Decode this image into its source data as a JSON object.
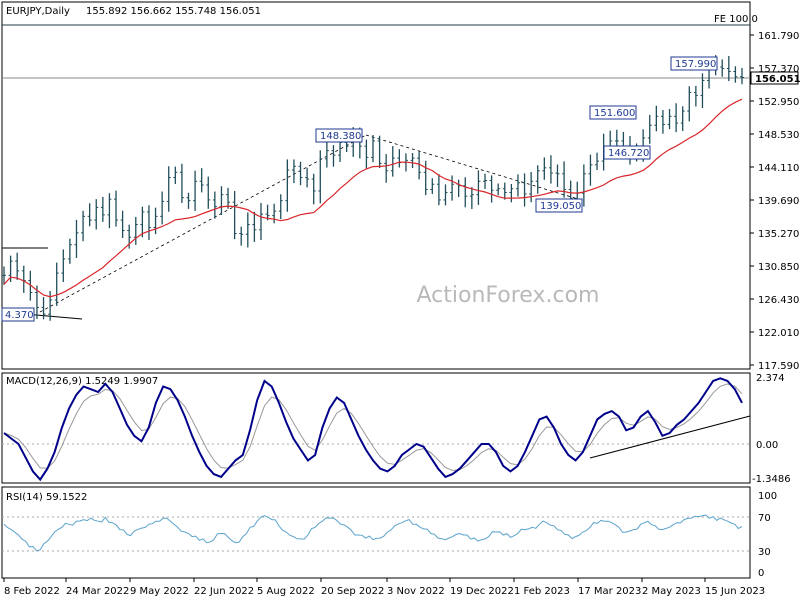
{
  "chart_data": {
    "type": "candlestick",
    "header": {
      "symbol": "EURJPY,Daily",
      "ohlc": "155.892 156.662 155.748 156.051"
    },
    "watermark": "ActionForex.com",
    "x_axis": {
      "labels": [
        "8 Feb 2022",
        "24 Mar 2022",
        "9 May 2022",
        "22 Jun 2022",
        "5 Aug 2022",
        "20 Sep 2022",
        "3 Nov 2022",
        "19 Dec 2022",
        "1 Feb 2023",
        "17 Mar 2023",
        "2 May 2023",
        "15 Jun 2023"
      ]
    },
    "price_panel": {
      "y_ticks": [
        "161.790",
        "157.370",
        "152.950",
        "148.530",
        "144.110",
        "139.690",
        "135.270",
        "130.850",
        "126.430",
        "122.010",
        "117.590"
      ],
      "y_range": [
        117.59,
        163.5
      ],
      "last_price": "156.051",
      "annotations": [
        "157.990",
        "151.600",
        "148.380",
        "146.720",
        "139.050",
        "4.370"
      ],
      "fe_label": "FE 100.0",
      "colors": {
        "price": "#1f4e5a",
        "ma": "#d9262b",
        "trend": "#000000",
        "price_line": "#888888"
      },
      "price_series": [
        129.6,
        131.5,
        130.2,
        128.9,
        127.3,
        125.3,
        124.4,
        126.3,
        129.9,
        131.8,
        133.7,
        135.3,
        137.5,
        137.0,
        138.7,
        137.7,
        139.8,
        137.0,
        135.6,
        134.7,
        136.4,
        138.1,
        136.0,
        137.5,
        139.5,
        142.7,
        143.4,
        140.0,
        139.6,
        142.2,
        141.7,
        139.7,
        138.8,
        140.4,
        139.4,
        135.2,
        135.1,
        136.4,
        135.7,
        137.8,
        137.6,
        138.2,
        139.6,
        143.7,
        144.2,
        142.7,
        142.5,
        140.9,
        145.2,
        146.3,
        145.7,
        147.4,
        146.9,
        148.0,
        146.9,
        145.4,
        147.6,
        144.6,
        143.6,
        145.3,
        144.7,
        145.0,
        145.3,
        143.4,
        141.1,
        141.8,
        139.7,
        140.7,
        141.8,
        141.6,
        140.2,
        140.4,
        142.2,
        142.3,
        141.0,
        141.2,
        140.7,
        141.2,
        142.0,
        140.5,
        142.2,
        143.6,
        144.0,
        143.3,
        143.2,
        141.1,
        139.9,
        140.6,
        143.2,
        144.4,
        144.9,
        146.8,
        147.6,
        147.6,
        146.6,
        145.9,
        146.6,
        148.0,
        149.7,
        150.9,
        149.8,
        150.9,
        150.0,
        151.6,
        154.1,
        153.7,
        155.7,
        157.2,
        157.5,
        157.3,
        156.9,
        156.2,
        156.1
      ]
    },
    "macd_panel": {
      "label": "MACD(12,26,9) 1.5249 1.9907",
      "y_ticks": [
        "2.374",
        "0.00",
        "-1.3486"
      ],
      "colors": {
        "macd": "#00008b",
        "signal": "#999999"
      },
      "macd_series": [
        0.4,
        0.2,
        0.0,
        -0.5,
        -1.0,
        -1.3,
        -0.9,
        -0.3,
        0.6,
        1.3,
        1.8,
        2.1,
        2.0,
        1.9,
        2.2,
        1.9,
        1.3,
        0.7,
        0.3,
        0.1,
        0.6,
        1.5,
        2.1,
        2.0,
        1.6,
        1.0,
        0.3,
        -0.3,
        -0.8,
        -1.1,
        -1.2,
        -0.9,
        -0.6,
        -0.4,
        0.5,
        1.6,
        2.3,
        2.1,
        1.5,
        0.8,
        0.2,
        -0.2,
        -0.6,
        -0.4,
        0.6,
        1.3,
        1.7,
        1.5,
        0.9,
        0.3,
        -0.2,
        -0.6,
        -0.9,
        -1.0,
        -0.8,
        -0.4,
        -0.2,
        0.0,
        -0.1,
        -0.5,
        -0.9,
        -1.2,
        -1.1,
        -0.9,
        -0.6,
        -0.3,
        0.0,
        0.0,
        -0.3,
        -0.8,
        -1.0,
        -0.8,
        -0.3,
        0.3,
        0.9,
        1.0,
        0.6,
        0.0,
        -0.4,
        -0.6,
        -0.3,
        0.3,
        0.9,
        1.1,
        1.2,
        1.0,
        0.5,
        0.6,
        1.0,
        1.2,
        0.8,
        0.3,
        0.4,
        0.7,
        0.9,
        1.2,
        1.5,
        1.9,
        2.3,
        2.4,
        2.3,
        2.0,
        1.5
      ]
    },
    "rsi_panel": {
      "label": "RSI(14) 59.1522",
      "y_ticks": [
        "100",
        "70",
        "30",
        "0"
      ],
      "colors": {
        "rsi": "#5aa3cc"
      },
      "rsi_series": [
        62,
        55,
        48,
        40,
        33,
        29,
        40,
        52,
        58,
        62,
        66,
        68,
        70,
        66,
        71,
        64,
        55,
        49,
        53,
        57,
        62,
        66,
        70,
        66,
        58,
        52,
        46,
        41,
        38,
        42,
        50,
        45,
        38,
        46,
        58,
        66,
        73,
        68,
        60,
        52,
        46,
        43,
        48,
        58,
        66,
        70,
        67,
        61,
        54,
        48,
        44,
        42,
        44,
        52,
        60,
        64,
        68,
        62,
        56,
        50,
        44,
        42,
        46,
        50,
        48,
        44,
        42,
        46,
        52,
        48,
        45,
        50,
        55,
        58,
        62,
        64,
        60,
        54,
        48,
        46,
        52,
        58,
        63,
        66,
        64,
        58,
        52,
        55,
        62,
        66,
        60,
        55,
        58,
        64,
        68,
        70,
        72,
        74,
        72,
        70,
        66,
        62,
        59
      ]
    }
  }
}
